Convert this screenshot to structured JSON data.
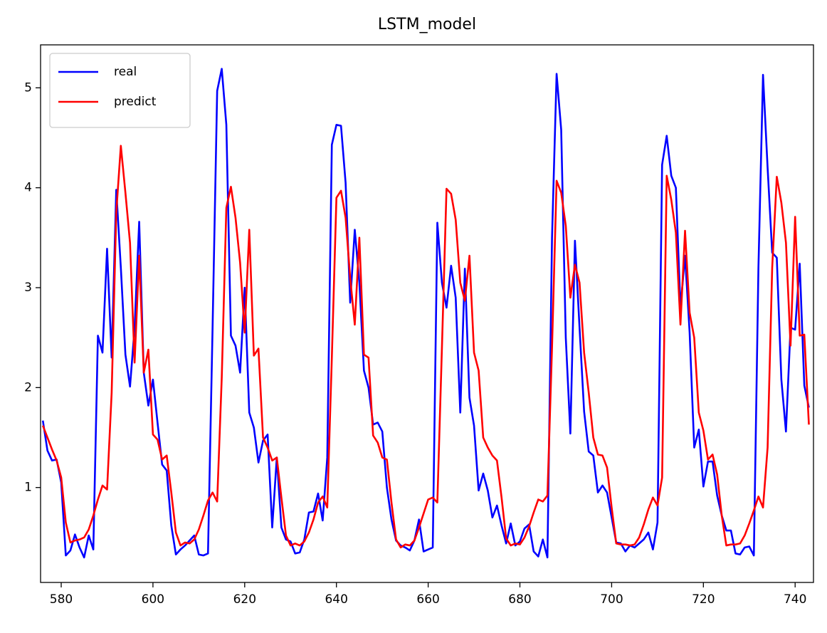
{
  "chart_data": {
    "type": "line",
    "title": "LSTM_model",
    "x": [
      576,
      577,
      578,
      579,
      580,
      581,
      582,
      583,
      584,
      585,
      586,
      587,
      588,
      589,
      590,
      591,
      592,
      593,
      594,
      595,
      596,
      597,
      598,
      599,
      600,
      601,
      602,
      603,
      604,
      605,
      606,
      607,
      608,
      609,
      610,
      611,
      612,
      613,
      614,
      615,
      616,
      617,
      618,
      619,
      620,
      621,
      622,
      623,
      624,
      625,
      626,
      627,
      628,
      629,
      630,
      631,
      632,
      633,
      634,
      635,
      636,
      637,
      638,
      639,
      640,
      641,
      642,
      643,
      644,
      645,
      646,
      647,
      648,
      649,
      650,
      651,
      652,
      653,
      654,
      655,
      656,
      657,
      658,
      659,
      660,
      661,
      662,
      663,
      664,
      665,
      666,
      667,
      668,
      669,
      670,
      671,
      672,
      673,
      674,
      675,
      676,
      677,
      678,
      679,
      680,
      681,
      682,
      683,
      684,
      685,
      686,
      687,
      688,
      689,
      690,
      691,
      692,
      693,
      694,
      695,
      696,
      697,
      698,
      699,
      700,
      701,
      702,
      703,
      704,
      705,
      706,
      707,
      708,
      709,
      710,
      711,
      712,
      713,
      714,
      715,
      716,
      717,
      718,
      719,
      720,
      721,
      722,
      723,
      724,
      725,
      726,
      727,
      728,
      729,
      730,
      731,
      732,
      733,
      734,
      735,
      736,
      737,
      738,
      739,
      740,
      741,
      742,
      743
    ],
    "series": [
      {
        "name": "real",
        "color": "#0000ff",
        "values": [
          1.67,
          1.37,
          1.27,
          1.28,
          1.05,
          0.32,
          0.37,
          0.53,
          0.4,
          0.3,
          0.52,
          0.38,
          2.52,
          2.35,
          3.39,
          2.3,
          3.98,
          3.2,
          2.33,
          2.01,
          2.6,
          3.66,
          2.15,
          1.82,
          2.08,
          1.65,
          1.23,
          1.17,
          0.62,
          0.33,
          0.38,
          0.42,
          0.47,
          0.52,
          0.33,
          0.32,
          0.34,
          2.6,
          4.97,
          5.19,
          4.63,
          2.52,
          2.42,
          2.15,
          3.0,
          1.75,
          1.6,
          1.25,
          1.47,
          1.53,
          0.6,
          1.3,
          0.6,
          0.48,
          0.46,
          0.34,
          0.35,
          0.48,
          0.75,
          0.76,
          0.94,
          0.67,
          1.3,
          4.43,
          4.63,
          4.62,
          4.05,
          2.85,
          3.58,
          3.05,
          2.17,
          2.0,
          1.63,
          1.65,
          1.56,
          1.0,
          0.68,
          0.47,
          0.42,
          0.4,
          0.37,
          0.47,
          0.68,
          0.36,
          0.38,
          0.4,
          3.65,
          3.05,
          2.8,
          3.22,
          2.9,
          1.75,
          3.19,
          1.9,
          1.62,
          0.97,
          1.14,
          0.97,
          0.7,
          0.82,
          0.62,
          0.44,
          0.64,
          0.42,
          0.46,
          0.59,
          0.63,
          0.36,
          0.31,
          0.48,
          0.3,
          3.5,
          5.14,
          4.58,
          2.5,
          1.54,
          3.47,
          2.6,
          1.76,
          1.36,
          1.32,
          0.95,
          1.02,
          0.95,
          0.7,
          0.45,
          0.44,
          0.36,
          0.42,
          0.4,
          0.44,
          0.48,
          0.55,
          0.38,
          0.65,
          4.23,
          4.52,
          4.12,
          4.0,
          2.8,
          3.32,
          2.55,
          1.4,
          1.58,
          1.01,
          1.26,
          1.26,
          0.92,
          0.72,
          0.57,
          0.57,
          0.34,
          0.33,
          0.4,
          0.41,
          0.32,
          3.2,
          5.13,
          4.2,
          3.35,
          3.3,
          2.08,
          1.56,
          2.6,
          2.58,
          3.24,
          2.02,
          1.8
        ]
      },
      {
        "name": "predict",
        "color": "#ff0000",
        "values": [
          1.62,
          1.5,
          1.38,
          1.27,
          1.1,
          0.65,
          0.45,
          0.47,
          0.48,
          0.5,
          0.58,
          0.72,
          0.88,
          1.02,
          0.98,
          1.95,
          3.75,
          4.42,
          3.95,
          3.45,
          2.25,
          3.32,
          2.15,
          2.38,
          1.53,
          1.48,
          1.28,
          1.32,
          0.95,
          0.55,
          0.42,
          0.45,
          0.44,
          0.48,
          0.58,
          0.72,
          0.87,
          0.95,
          0.86,
          2.1,
          3.8,
          4.01,
          3.7,
          3.25,
          2.55,
          3.58,
          2.32,
          2.39,
          1.5,
          1.4,
          1.27,
          1.3,
          0.9,
          0.52,
          0.42,
          0.44,
          0.42,
          0.46,
          0.55,
          0.68,
          0.85,
          0.91,
          0.8,
          2.3,
          3.9,
          3.97,
          3.7,
          3.1,
          2.63,
          3.5,
          2.33,
          2.3,
          1.52,
          1.45,
          1.3,
          1.28,
          0.85,
          0.48,
          0.4,
          0.43,
          0.42,
          0.47,
          0.6,
          0.74,
          0.88,
          0.9,
          0.85,
          2.4,
          3.99,
          3.94,
          3.68,
          3.05,
          2.87,
          3.32,
          2.35,
          2.17,
          1.5,
          1.4,
          1.32,
          1.27,
          0.9,
          0.49,
          0.42,
          0.44,
          0.43,
          0.5,
          0.61,
          0.75,
          0.88,
          0.86,
          0.92,
          2.4,
          4.07,
          3.95,
          3.62,
          2.9,
          3.23,
          3.05,
          2.35,
          1.95,
          1.5,
          1.33,
          1.32,
          1.2,
          0.8,
          0.44,
          0.43,
          0.43,
          0.42,
          0.43,
          0.5,
          0.63,
          0.78,
          0.9,
          0.82,
          1.1,
          4.12,
          3.88,
          3.55,
          2.63,
          3.57,
          2.75,
          2.5,
          1.75,
          1.57,
          1.28,
          1.33,
          1.13,
          0.72,
          0.42,
          0.43,
          0.43,
          0.44,
          0.52,
          0.64,
          0.77,
          0.91,
          0.8,
          1.4,
          3.2,
          4.11,
          3.85,
          3.45,
          2.42,
          3.71,
          2.52,
          2.53,
          1.63
        ]
      }
    ],
    "xlim": [
      575.5,
      744
    ],
    "ylim": [
      0.05,
      5.43
    ],
    "xticks": [
      580,
      600,
      620,
      640,
      660,
      680,
      700,
      720,
      740
    ],
    "yticks": [
      1,
      2,
      3,
      4,
      5
    ],
    "legend": "upper left"
  }
}
